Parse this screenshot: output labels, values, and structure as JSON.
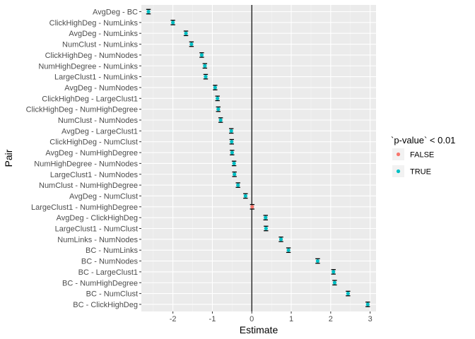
{
  "chart_data": {
    "type": "scatter",
    "xlabel": "Estimate",
    "ylabel": "Pair",
    "xlim": [
      -2.8,
      3.15
    ],
    "xticks": [
      -2,
      -1,
      0,
      1,
      2,
      3
    ],
    "grid": true,
    "legend_position": "right",
    "legend": {
      "title": "`p-value` < 0.01",
      "entries": [
        {
          "label": "FALSE",
          "color": "#F8766D"
        },
        {
          "label": "TRUE",
          "color": "#00BFC4"
        }
      ]
    },
    "points": [
      {
        "pair": "AvgDeg - BC",
        "estimate": -2.62,
        "significant": true
      },
      {
        "pair": "ClickHighDeg - NumLinks",
        "estimate": -2.0,
        "significant": true
      },
      {
        "pair": "AvgDeg - NumLinks",
        "estimate": -1.67,
        "significant": true
      },
      {
        "pair": "NumClust - NumLinks",
        "estimate": -1.53,
        "significant": true
      },
      {
        "pair": "ClickHighDeg - NumNodes",
        "estimate": -1.27,
        "significant": true
      },
      {
        "pair": "NumHighDegree - NumLinks",
        "estimate": -1.19,
        "significant": true
      },
      {
        "pair": "LargeClust1 - NumLinks",
        "estimate": -1.17,
        "significant": true
      },
      {
        "pair": "AvgDeg - NumNodes",
        "estimate": -0.93,
        "significant": true
      },
      {
        "pair": "ClickHighDeg - LargeClust1",
        "estimate": -0.87,
        "significant": true
      },
      {
        "pair": "ClickHighDeg - NumHighDegree",
        "estimate": -0.85,
        "significant": true
      },
      {
        "pair": "NumClust - NumNodes",
        "estimate": -0.79,
        "significant": true
      },
      {
        "pair": "AvgDeg - LargeClust1",
        "estimate": -0.52,
        "significant": true
      },
      {
        "pair": "ClickHighDeg - NumClust",
        "estimate": -0.51,
        "significant": true
      },
      {
        "pair": "AvgDeg - NumHighDegree",
        "estimate": -0.5,
        "significant": true
      },
      {
        "pair": "NumHighDegree - NumNodes",
        "estimate": -0.45,
        "significant": true
      },
      {
        "pair": "LargeClust1 - NumNodes",
        "estimate": -0.44,
        "significant": true
      },
      {
        "pair": "NumClust - NumHighDegree",
        "estimate": -0.35,
        "significant": true
      },
      {
        "pair": "AvgDeg - NumClust",
        "estimate": -0.16,
        "significant": true
      },
      {
        "pair": "LargeClust1 - NumHighDegree",
        "estimate": 0.01,
        "significant": false
      },
      {
        "pair": "AvgDeg - ClickHighDeg",
        "estimate": 0.35,
        "significant": true
      },
      {
        "pair": "LargeClust1 - NumClust",
        "estimate": 0.36,
        "significant": true
      },
      {
        "pair": "NumLinks - NumNodes",
        "estimate": 0.74,
        "significant": true
      },
      {
        "pair": "BC - NumLinks",
        "estimate": 0.93,
        "significant": true
      },
      {
        "pair": "BC - NumNodes",
        "estimate": 1.67,
        "significant": true
      },
      {
        "pair": "BC - LargeClust1",
        "estimate": 2.07,
        "significant": true
      },
      {
        "pair": "BC - NumHighDegree",
        "estimate": 2.1,
        "significant": true
      },
      {
        "pair": "BC - NumClust",
        "estimate": 2.44,
        "significant": true
      },
      {
        "pair": "BC - ClickHighDeg",
        "estimate": 2.94,
        "significant": true
      }
    ]
  }
}
